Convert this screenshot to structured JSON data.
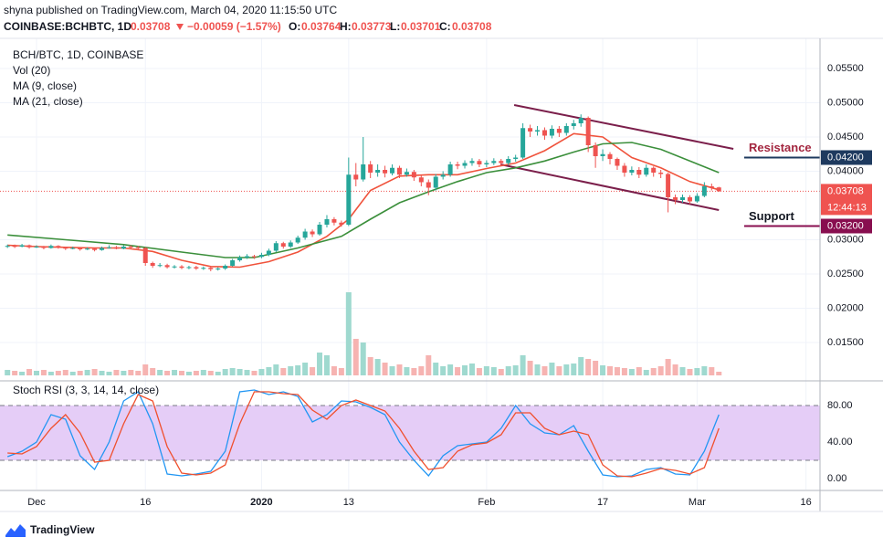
{
  "header": {
    "publisher": "shyna published on TradingView.com, March 04, 2020 11:15:50 UTC",
    "symbol": "COINBASE:BCHBTC, 1D",
    "change": "−0.00059 (−1.57%)",
    "ohlc_labels": [
      "O:",
      "H:",
      "L:",
      "C:"
    ]
  },
  "logo": "TradingView",
  "chart_data": [
    {
      "type": "candlestick",
      "title": "BCH/BTC, 1D, COINBASE",
      "up_color": "#26a69a",
      "down_color": "#ef5350",
      "x": [
        -4,
        -3,
        -2,
        -1,
        0,
        1,
        2,
        3,
        4,
        5,
        6,
        7,
        8,
        9,
        10,
        11,
        12,
        13,
        14,
        15,
        16,
        17,
        18,
        19,
        20,
        21,
        22,
        23,
        24,
        25,
        26,
        27,
        28,
        29,
        30,
        31,
        32,
        33,
        34,
        35,
        36,
        37,
        38,
        39,
        40,
        41,
        42,
        43,
        44,
        45,
        46,
        47,
        48,
        49,
        50,
        51,
        52,
        53,
        54,
        55,
        56,
        57,
        58,
        59,
        60,
        61,
        62,
        63,
        64,
        65,
        66,
        67,
        68,
        69,
        70,
        71,
        72,
        73,
        74,
        75,
        76,
        77,
        78,
        79,
        80,
        81,
        82,
        83,
        84,
        85,
        86,
        87,
        88,
        89,
        90,
        91,
        92,
        93,
        94
      ],
      "open": [
        0.029,
        0.0291,
        0.029,
        0.0292,
        0.0289,
        0.029,
        0.0288,
        0.0291,
        0.0289,
        0.0287,
        0.0288,
        0.0286,
        0.0287,
        0.0285,
        0.0288,
        0.0289,
        0.0287,
        0.029,
        0.0289,
        0.0288,
        0.0266,
        0.0262,
        0.0263,
        0.026,
        0.0261,
        0.0259,
        0.026,
        0.0258,
        0.0259,
        0.0257,
        0.0258,
        0.0262,
        0.027,
        0.0274,
        0.0276,
        0.0275,
        0.0278,
        0.0284,
        0.0295,
        0.029,
        0.0296,
        0.0303,
        0.0312,
        0.0308,
        0.0322,
        0.033,
        0.0325,
        0.0322,
        0.0395,
        0.0388,
        0.041,
        0.0398,
        0.0402,
        0.0397,
        0.0405,
        0.0395,
        0.0399,
        0.0391,
        0.0384,
        0.0376,
        0.0392,
        0.0395,
        0.041,
        0.0408,
        0.0412,
        0.0415,
        0.041,
        0.0412,
        0.0415,
        0.0412,
        0.0418,
        0.042,
        0.0463,
        0.0458,
        0.046,
        0.0452,
        0.0462,
        0.0456,
        0.0466,
        0.047,
        0.0478,
        0.0438,
        0.0422,
        0.0425,
        0.0418,
        0.0408,
        0.0398,
        0.0402,
        0.0395,
        0.0405,
        0.0398,
        0.0396,
        0.0362,
        0.0358,
        0.0362,
        0.0356,
        0.0364,
        0.0378,
        0.03764
      ],
      "high": [
        0.0293,
        0.0293,
        0.0294,
        0.0293,
        0.0292,
        0.0291,
        0.0293,
        0.0292,
        0.029,
        0.029,
        0.0289,
        0.0289,
        0.0288,
        0.029,
        0.0292,
        0.0291,
        0.0292,
        0.0292,
        0.0291,
        0.0289,
        0.0268,
        0.0266,
        0.0265,
        0.0263,
        0.0263,
        0.0262,
        0.0262,
        0.0261,
        0.0261,
        0.026,
        0.0264,
        0.0272,
        0.0277,
        0.0279,
        0.0278,
        0.0281,
        0.0287,
        0.0298,
        0.0297,
        0.0299,
        0.0306,
        0.0316,
        0.0315,
        0.0326,
        0.0336,
        0.0333,
        0.0328,
        0.042,
        0.0412,
        0.045,
        0.0415,
        0.041,
        0.0408,
        0.041,
        0.0408,
        0.0404,
        0.0402,
        0.0394,
        0.0388,
        0.0396,
        0.04,
        0.0414,
        0.0414,
        0.0416,
        0.0419,
        0.0418,
        0.0416,
        0.0419,
        0.0418,
        0.0422,
        0.0424,
        0.047,
        0.0468,
        0.0466,
        0.0464,
        0.0467,
        0.0466,
        0.047,
        0.0475,
        0.0483,
        0.048,
        0.0442,
        0.0432,
        0.0428,
        0.042,
        0.0412,
        0.0407,
        0.0406,
        0.041,
        0.0407,
        0.0402,
        0.0398,
        0.0366,
        0.0366,
        0.0365,
        0.0368,
        0.0384,
        0.0382,
        0.03773
      ],
      "low": [
        0.0288,
        0.0288,
        0.0289,
        0.0287,
        0.0288,
        0.0286,
        0.0287,
        0.0287,
        0.0285,
        0.0286,
        0.0284,
        0.0285,
        0.0283,
        0.0284,
        0.0287,
        0.0286,
        0.0286,
        0.0287,
        0.0286,
        0.0262,
        0.0259,
        0.026,
        0.0258,
        0.0258,
        0.0257,
        0.0257,
        0.0256,
        0.0256,
        0.0254,
        0.0255,
        0.0256,
        0.0261,
        0.0268,
        0.0272,
        0.0272,
        0.0273,
        0.0276,
        0.0282,
        0.0287,
        0.0288,
        0.0294,
        0.03,
        0.0304,
        0.0306,
        0.0318,
        0.0321,
        0.0319,
        0.032,
        0.0378,
        0.0385,
        0.039,
        0.0392,
        0.0391,
        0.0394,
        0.039,
        0.0392,
        0.0386,
        0.0378,
        0.0365,
        0.0372,
        0.0388,
        0.0392,
        0.0403,
        0.0404,
        0.0408,
        0.0406,
        0.0406,
        0.0409,
        0.0408,
        0.0409,
        0.0414,
        0.0418,
        0.045,
        0.0452,
        0.0446,
        0.0448,
        0.045,
        0.0452,
        0.0461,
        0.0465,
        0.0428,
        0.0405,
        0.0415,
        0.041,
        0.0402,
        0.0392,
        0.0394,
        0.039,
        0.0392,
        0.0392,
        0.039,
        0.034,
        0.0352,
        0.0354,
        0.0352,
        0.0354,
        0.0362,
        0.0372,
        0.03701
      ],
      "close": [
        0.0291,
        0.029,
        0.0292,
        0.0289,
        0.029,
        0.0288,
        0.0291,
        0.0289,
        0.0287,
        0.0288,
        0.0286,
        0.0287,
        0.0285,
        0.0288,
        0.0289,
        0.0287,
        0.029,
        0.0289,
        0.0288,
        0.0266,
        0.0262,
        0.0263,
        0.026,
        0.0261,
        0.0259,
        0.026,
        0.0258,
        0.0259,
        0.0257,
        0.0258,
        0.0262,
        0.027,
        0.0274,
        0.0276,
        0.0275,
        0.0278,
        0.0284,
        0.0295,
        0.029,
        0.0296,
        0.0303,
        0.0312,
        0.0308,
        0.0322,
        0.033,
        0.0325,
        0.0322,
        0.0395,
        0.0388,
        0.041,
        0.0398,
        0.0402,
        0.0397,
        0.0405,
        0.0395,
        0.0399,
        0.0391,
        0.0384,
        0.0376,
        0.0392,
        0.0395,
        0.041,
        0.0408,
        0.0412,
        0.0415,
        0.041,
        0.0412,
        0.0415,
        0.0412,
        0.0418,
        0.042,
        0.0463,
        0.0458,
        0.046,
        0.0452,
        0.0462,
        0.0456,
        0.0466,
        0.047,
        0.0478,
        0.0438,
        0.0422,
        0.0425,
        0.0418,
        0.0408,
        0.0398,
        0.0402,
        0.0395,
        0.0405,
        0.0398,
        0.0396,
        0.0362,
        0.0358,
        0.0362,
        0.0356,
        0.0364,
        0.0378,
        0.0376,
        0.03708
      ],
      "volume": {
        "name": "Vol (20)",
        "up_color": "#9fd9cf",
        "down_color": "#f6b3b1",
        "values": [
          6,
          5,
          4,
          7,
          5,
          6,
          4,
          5,
          6,
          4,
          5,
          6,
          7,
          5,
          4,
          6,
          5,
          6,
          5,
          12,
          8,
          6,
          5,
          6,
          5,
          4,
          5,
          6,
          5,
          4,
          7,
          8,
          7,
          6,
          5,
          7,
          9,
          12,
          8,
          10,
          11,
          14,
          9,
          25,
          22,
          10,
          8,
          91,
          40,
          36,
          20,
          18,
          14,
          10,
          12,
          9,
          8,
          10,
          22,
          14,
          10,
          12,
          9,
          11,
          13,
          8,
          10,
          9,
          7,
          10,
          11,
          22,
          16,
          12,
          10,
          14,
          10,
          12,
          13,
          20,
          18,
          16,
          11,
          10,
          9,
          8,
          7,
          9,
          6,
          8,
          10,
          18,
          12,
          9,
          7,
          8,
          10,
          9,
          4
        ]
      },
      "ma": [
        {
          "name": "MA (9, close)",
          "color": "#f0533c",
          "x": [
            -4,
            0,
            4,
            8,
            12,
            16,
            20,
            24,
            28,
            32,
            36,
            40,
            43,
            46,
            50,
            54,
            58,
            62,
            66,
            70,
            74,
            78,
            82,
            86,
            90,
            94
          ],
          "values": [
            0.0292,
            0.029,
            0.0289,
            0.0288,
            0.0288,
            0.0283,
            0.027,
            0.0261,
            0.026,
            0.0268,
            0.0282,
            0.0305,
            0.033,
            0.0372,
            0.0393,
            0.0395,
            0.0395,
            0.0404,
            0.0412,
            0.043,
            0.0455,
            0.045,
            0.042,
            0.0405,
            0.0385,
            0.0373
          ]
        },
        {
          "name": "MA (21, close)",
          "color": "#3b8f3b",
          "x": [
            -4,
            4,
            12,
            20,
            26,
            30,
            36,
            42,
            46,
            50,
            54,
            58,
            62,
            66,
            70,
            74,
            78,
            82,
            86,
            90,
            94
          ],
          "values": [
            0.0307,
            0.03,
            0.0293,
            0.0282,
            0.0274,
            0.0274,
            0.0288,
            0.0305,
            0.033,
            0.0354,
            0.037,
            0.0385,
            0.0398,
            0.0405,
            0.0415,
            0.0428,
            0.044,
            0.0442,
            0.0432,
            0.0415,
            0.0398
          ]
        }
      ],
      "xlim": [
        -5.03,
        107.93
      ],
      "xticks": [
        {
          "value": 0,
          "label": "Dec"
        },
        {
          "value": 15,
          "label": "16"
        },
        {
          "value": 31,
          "label": "2020"
        },
        {
          "value": 43,
          "label": "13"
        },
        {
          "value": 62,
          "label": "Feb"
        },
        {
          "value": 78,
          "label": "17"
        },
        {
          "value": 91,
          "label": "Mar"
        },
        {
          "value": 106,
          "label": "16"
        }
      ],
      "ylim": [
        0.0094,
        0.0594
      ],
      "yticks": [
        {
          "value": 0.055,
          "label": "0.05500"
        },
        {
          "value": 0.05,
          "label": "0.05000"
        },
        {
          "value": 0.045,
          "label": "0.04500"
        },
        {
          "value": 0.04,
          "label": "0.04000"
        },
        {
          "value": 0.03,
          "label": "0.03000"
        },
        {
          "value": 0.025,
          "label": "0.02500"
        },
        {
          "value": 0.02,
          "label": "0.02000"
        },
        {
          "value": 0.015,
          "label": "0.01500"
        }
      ],
      "grid": true,
      "countdown": "12:44:13",
      "annotations": [
        {
          "text": "Resistance",
          "value": 0.042,
          "label": "0.04200",
          "color": "#a3263f",
          "line_color": "#1e3a5f"
        },
        {
          "text": "Support",
          "value": 0.032,
          "label": "0.03200",
          "color": "#131722",
          "line_color": "#880e4f"
        }
      ],
      "trendline_color": "#7b1f4b",
      "trendlines": [
        {
          "points": [
            [
              65.8,
              0.04967
            ],
            [
              96,
              0.04327
            ]
          ]
        },
        {
          "points": [
            [
              63.9,
              0.041
            ],
            [
              94,
              0.03433
            ]
          ]
        }
      ]
    },
    {
      "type": "line",
      "title": "Stoch RSI (3, 3, 14, 14, close)",
      "x": [
        -4,
        -2,
        0,
        2,
        4,
        6,
        8,
        10,
        12,
        14,
        16,
        18,
        20,
        22,
        24,
        26,
        28,
        30,
        32,
        34,
        36,
        38,
        40,
        42,
        44,
        46,
        48,
        50,
        52,
        54,
        56,
        58,
        60,
        62,
        64,
        66,
        68,
        70,
        72,
        74,
        76,
        78,
        80,
        82,
        84,
        86,
        88,
        90,
        92,
        94
      ],
      "series": [
        {
          "color": "#2196f3",
          "values": [
            24,
            30,
            40,
            70,
            65,
            25,
            10,
            40,
            85,
            95,
            60,
            5,
            3,
            5,
            8,
            30,
            95,
            97,
            92,
            95,
            90,
            62,
            70,
            85,
            84,
            78,
            70,
            40,
            20,
            3,
            25,
            36,
            38,
            40,
            55,
            80,
            60,
            50,
            48,
            58,
            30,
            4,
            2,
            3,
            10,
            12,
            5,
            4,
            30,
            70
          ]
        },
        {
          "color": "#f0502e",
          "values": [
            28,
            27,
            35,
            55,
            70,
            50,
            18,
            20,
            60,
            92,
            85,
            35,
            6,
            4,
            6,
            15,
            60,
            95,
            95,
            93,
            92,
            75,
            65,
            80,
            86,
            80,
            74,
            55,
            30,
            10,
            12,
            30,
            37,
            39,
            48,
            72,
            72,
            55,
            48,
            52,
            48,
            15,
            3,
            2,
            6,
            11,
            9,
            5,
            12,
            55
          ]
        }
      ],
      "xlim": [
        -5.03,
        107.93
      ],
      "ylim": [
        -12,
        107
      ],
      "yticks": [
        {
          "value": 80,
          "label": "80.00"
        },
        {
          "value": 40,
          "label": "40.00"
        },
        {
          "value": 0,
          "label": "0.00"
        }
      ],
      "band": [
        20,
        80
      ],
      "band_color": "#e5cdf7"
    }
  ]
}
